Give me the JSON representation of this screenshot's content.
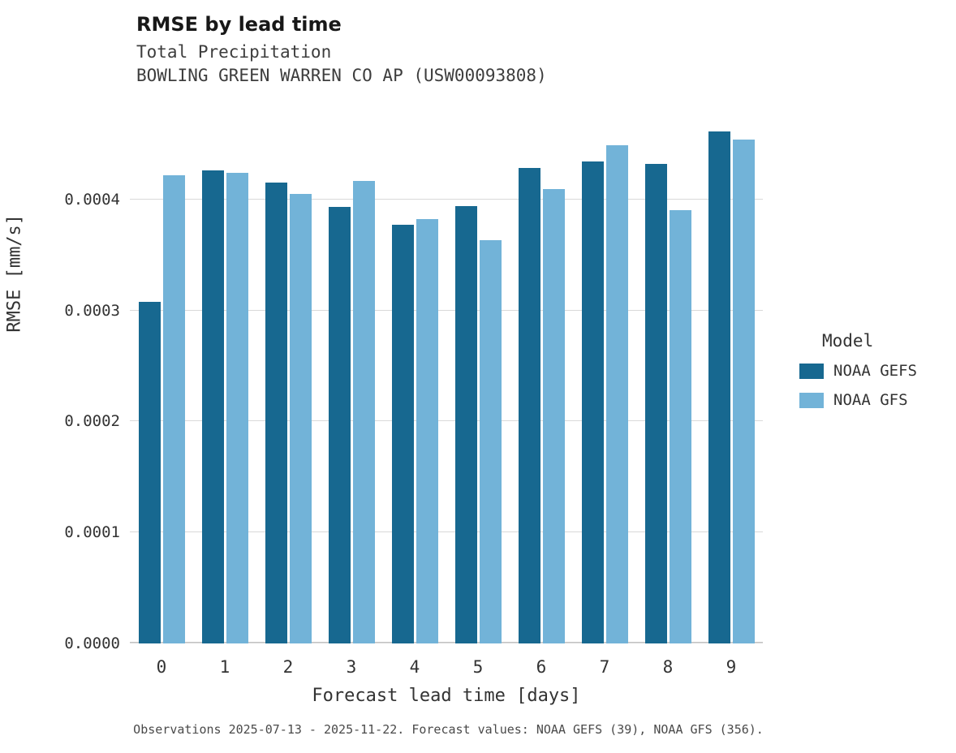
{
  "header": {
    "title": "RMSE by lead time",
    "subtitle1": "Total Precipitation",
    "subtitle2": "BOWLING GREEN WARREN CO AP (USW00093808)"
  },
  "caption": "Observations 2025-07-13 - 2025-11-22. Forecast values: NOAA GEFS (39), NOAA GFS (356).",
  "chart_data": {
    "type": "bar",
    "title": "RMSE by lead time",
    "subtitle": [
      "Total Precipitation",
      "BOWLING GREEN WARREN CO AP (USW00093808)"
    ],
    "categories": [
      "0",
      "1",
      "2",
      "3",
      "4",
      "5",
      "6",
      "7",
      "8",
      "9"
    ],
    "series": [
      {
        "name": "NOAA GEFS",
        "color": "#176890",
        "values": [
          0.000308,
          0.000426,
          0.000415,
          0.000393,
          0.000377,
          0.000394,
          0.000428,
          0.000434,
          0.000432,
          0.000461
        ]
      },
      {
        "name": "NOAA GFS",
        "color": "#72b3d8",
        "values": [
          0.000422,
          0.000424,
          0.000405,
          0.000417,
          0.000382,
          0.000363,
          0.000409,
          0.000449,
          0.00039,
          0.000454
        ]
      }
    ],
    "xlabel": "Forecast lead time [days]",
    "ylabel": "RMSE [mm/s]",
    "ylim": [
      0,
      0.00047
    ],
    "yticks": [
      0,
      0.0001,
      0.0002,
      0.0003,
      0.0004
    ],
    "ytick_labels": [
      "0.0000",
      "0.0001",
      "0.0002",
      "0.0003",
      "0.0004"
    ],
    "legend_title": "Model",
    "legend_position": "right",
    "grid": true,
    "background": "#ffffff"
  }
}
